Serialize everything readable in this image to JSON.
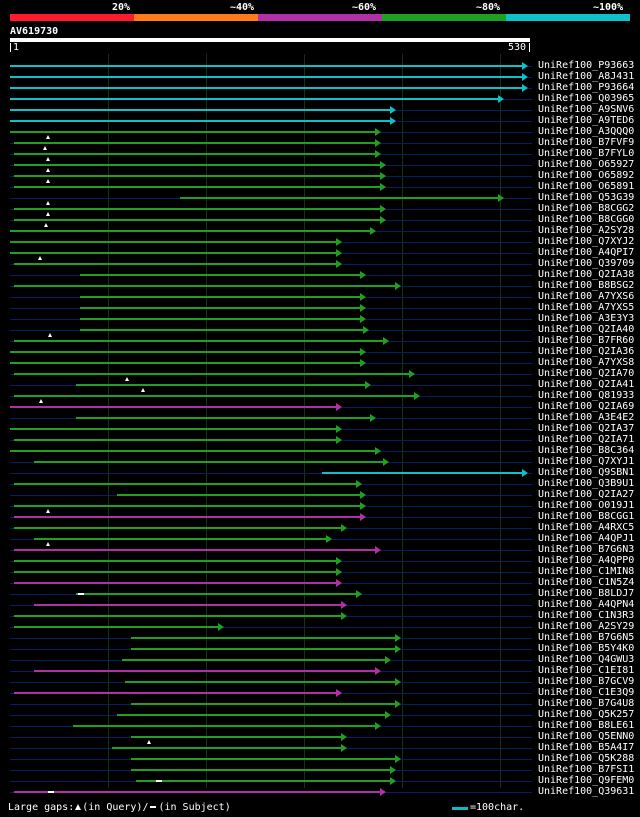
{
  "legend": {
    "labels": [
      "20%",
      "~40%",
      "~60%",
      "~80%",
      "~100%"
    ],
    "colors": [
      "#ff1a2e",
      "#ff7a1a",
      "#b030a8",
      "#20a020",
      "#10c0c8"
    ]
  },
  "query": {
    "name": "AV619730",
    "start": "1",
    "end": "530",
    "length": 530
  },
  "footer": {
    "large_gaps_label": "Large gaps:",
    "query_gap_label": "(in Query)/",
    "subject_gap_label": "(in Subject)",
    "scale_label": "=100char."
  },
  "hits": [
    {
      "id": "UniRef100_P93663",
      "start": 1,
      "end": 530,
      "color": "cyan"
    },
    {
      "id": "UniRef100_A8J431",
      "start": 1,
      "end": 530,
      "color": "cyan"
    },
    {
      "id": "UniRef100_P93664",
      "start": 1,
      "end": 530,
      "color": "cyan"
    },
    {
      "id": "UniRef100_Q03965",
      "start": 1,
      "end": 505,
      "color": "cyan"
    },
    {
      "id": "UniRef100_A9SNV6",
      "start": 1,
      "end": 395,
      "color": "cyan"
    },
    {
      "id": "UniRef100_A9TED6",
      "start": 1,
      "end": 395,
      "color": "cyan"
    },
    {
      "id": "UniRef100_A3QQQ0",
      "start": 1,
      "end": 380,
      "color": "green"
    },
    {
      "id": "UniRef100_B7FVF9",
      "start": 5,
      "end": 380,
      "color": "green",
      "gapq": 40
    },
    {
      "id": "UniRef100_B7FYL0",
      "start": 5,
      "end": 380,
      "color": "green",
      "gapq": 37
    },
    {
      "id": "UniRef100_O65927",
      "start": 5,
      "end": 385,
      "color": "green",
      "gapq": 40
    },
    {
      "id": "UniRef100_O65892",
      "start": 5,
      "end": 385,
      "color": "green",
      "gapq": 40
    },
    {
      "id": "UniRef100_O65891",
      "start": 5,
      "end": 385,
      "color": "green",
      "gapq": 40
    },
    {
      "id": "UniRef100_Q53G39",
      "start": 175,
      "end": 505,
      "color": "green"
    },
    {
      "id": "UniRef100_B8CGG2",
      "start": 5,
      "end": 385,
      "color": "green",
      "gapq": 40
    },
    {
      "id": "UniRef100_B8CGG0",
      "start": 5,
      "end": 385,
      "color": "green",
      "gapq": 40
    },
    {
      "id": "UniRef100_A2SY28",
      "start": 1,
      "end": 375,
      "color": "green",
      "gapq": 38
    },
    {
      "id": "UniRef100_Q7XYJ2",
      "start": 1,
      "end": 340,
      "color": "green"
    },
    {
      "id": "UniRef100_A4QPI7",
      "start": 1,
      "end": 340,
      "color": "green"
    },
    {
      "id": "UniRef100_Q39709",
      "start": 5,
      "end": 340,
      "color": "green",
      "gapq": 32
    },
    {
      "id": "UniRef100_Q2IA38",
      "start": 72,
      "end": 365,
      "color": "green"
    },
    {
      "id": "UniRef100_B8BSG2",
      "start": 5,
      "end": 400,
      "color": "green"
    },
    {
      "id": "UniRef100_A7YXS6",
      "start": 72,
      "end": 365,
      "color": "green"
    },
    {
      "id": "UniRef100_A7YXS5",
      "start": 72,
      "end": 365,
      "color": "green"
    },
    {
      "id": "UniRef100_A3E3Y3",
      "start": 72,
      "end": 365,
      "color": "green"
    },
    {
      "id": "UniRef100_Q2IA40",
      "start": 72,
      "end": 368,
      "color": "green"
    },
    {
      "id": "UniRef100_B7FR60",
      "start": 5,
      "end": 388,
      "color": "green",
      "gapq": 42
    },
    {
      "id": "UniRef100_Q2IA36",
      "start": 1,
      "end": 365,
      "color": "green"
    },
    {
      "id": "UniRef100_A7YXS8",
      "start": 1,
      "end": 365,
      "color": "green"
    },
    {
      "id": "UniRef100_Q2IA70",
      "start": 5,
      "end": 415,
      "color": "green"
    },
    {
      "id": "UniRef100_Q2IA41",
      "start": 68,
      "end": 370,
      "color": "green",
      "gapq": 120
    },
    {
      "id": "UniRef100_Q81933",
      "start": 5,
      "end": 420,
      "color": "green",
      "gapq": 137
    },
    {
      "id": "UniRef100_Q2IA69",
      "start": 1,
      "end": 340,
      "color": "magenta",
      "gapq": 33
    },
    {
      "id": "UniRef100_A3E4E2",
      "start": 68,
      "end": 375,
      "color": "green"
    },
    {
      "id": "UniRef100_Q2IA37",
      "start": 1,
      "end": 340,
      "color": "green"
    },
    {
      "id": "UniRef100_Q2IA71",
      "start": 5,
      "end": 340,
      "color": "green"
    },
    {
      "id": "UniRef100_B8C364",
      "start": 1,
      "end": 380,
      "color": "green"
    },
    {
      "id": "UniRef100_Q7XYJ1",
      "start": 25,
      "end": 388,
      "color": "green"
    },
    {
      "id": "UniRef100_Q9SBN1",
      "start": 320,
      "end": 530,
      "color": "cyan"
    },
    {
      "id": "UniRef100_Q3B9U1",
      "start": 5,
      "end": 360,
      "color": "green"
    },
    {
      "id": "UniRef100_Q2IA27",
      "start": 110,
      "end": 365,
      "color": "green"
    },
    {
      "id": "UniRef100_O019J1",
      "start": 5,
      "end": 365,
      "color": "green"
    },
    {
      "id": "UniRef100_B8CGG1",
      "start": 5,
      "end": 365,
      "color": "magenta",
      "gapq": 40
    },
    {
      "id": "UniRef100_A4RXC5",
      "start": 5,
      "end": 345,
      "color": "green"
    },
    {
      "id": "UniRef100_A4QPJ1",
      "start": 25,
      "end": 330,
      "color": "green"
    },
    {
      "id": "UniRef100_B7G6N3",
      "start": 5,
      "end": 380,
      "color": "magenta",
      "gapq": 40
    },
    {
      "id": "UniRef100_A4QPP0",
      "start": 5,
      "end": 340,
      "color": "green"
    },
    {
      "id": "UniRef100_C1MIN8",
      "start": 5,
      "end": 340,
      "color": "green"
    },
    {
      "id": "UniRef100_C1N5Z4",
      "start": 5,
      "end": 340,
      "color": "magenta"
    },
    {
      "id": "UniRef100_B8LDJ7",
      "start": 68,
      "end": 360,
      "color": "green",
      "gaps": 70
    },
    {
      "id": "UniRef100_A4QPN4",
      "start": 25,
      "end": 345,
      "color": "magenta"
    },
    {
      "id": "UniRef100_C1N3R3",
      "start": 5,
      "end": 345,
      "color": "green"
    },
    {
      "id": "UniRef100_A2SY29",
      "start": 5,
      "end": 220,
      "color": "green"
    },
    {
      "id": "UniRef100_B7G6N5",
      "start": 125,
      "end": 400,
      "color": "green"
    },
    {
      "id": "UniRef100_B5Y4K0",
      "start": 125,
      "end": 400,
      "color": "green"
    },
    {
      "id": "UniRef100_Q4GWU3",
      "start": 115,
      "end": 390,
      "color": "green"
    },
    {
      "id": "UniRef100_C1EI81",
      "start": 25,
      "end": 380,
      "color": "magenta"
    },
    {
      "id": "UniRef100_B7GCV9",
      "start": 118,
      "end": 400,
      "color": "green"
    },
    {
      "id": "UniRef100_C1E3Q9",
      "start": 5,
      "end": 340,
      "color": "magenta"
    },
    {
      "id": "UniRef100_B7G4U8",
      "start": 125,
      "end": 400,
      "color": "green"
    },
    {
      "id": "UniRef100_Q5K257",
      "start": 110,
      "end": 390,
      "color": "green"
    },
    {
      "id": "UniRef100_B8LE61",
      "start": 65,
      "end": 380,
      "color": "green"
    },
    {
      "id": "UniRef100_Q5ENN0",
      "start": 125,
      "end": 345,
      "color": "green"
    },
    {
      "id": "UniRef100_B5A4I7",
      "start": 105,
      "end": 345,
      "color": "green",
      "gapq": 143
    },
    {
      "id": "UniRef100_Q5K288",
      "start": 125,
      "end": 400,
      "color": "green"
    },
    {
      "id": "UniRef100_B7FSI1",
      "start": 125,
      "end": 395,
      "color": "green"
    },
    {
      "id": "UniRef100_Q9FEM0",
      "start": 130,
      "end": 395,
      "color": "green",
      "gaps": 150
    },
    {
      "id": "UniRef100_Q39631",
      "start": 5,
      "end": 385,
      "color": "magenta",
      "gaps": 40
    }
  ]
}
